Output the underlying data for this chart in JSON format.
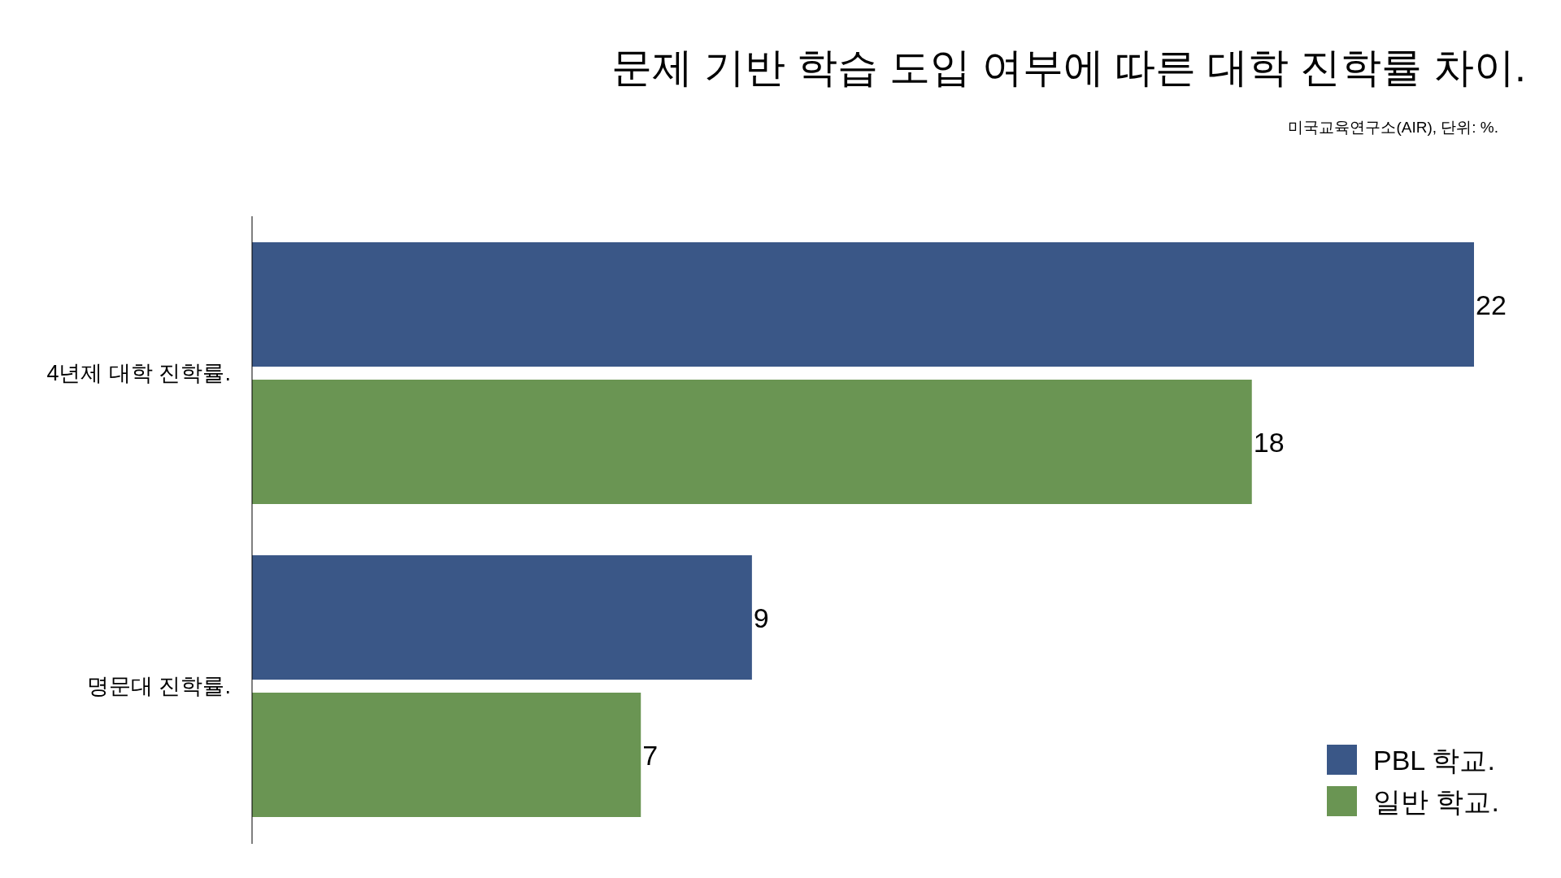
{
  "chart_data": {
    "type": "bar",
    "orientation": "horizontal",
    "title": "문제 기반 학습 도입 여부에 따른 대학 진학률 차이.",
    "annotations": [
      "미국교육연구소(AIR), 단위: %."
    ],
    "categories": [
      "4년제 대학 진학률.",
      "명문대 진학률."
    ],
    "series": [
      {
        "name": "PBL 학교.",
        "color": "#3a5787",
        "values": [
          22,
          9
        ]
      },
      {
        "name": "일반 학교.",
        "color": "#6a9553",
        "values": [
          18,
          7
        ]
      }
    ],
    "data_labels": true,
    "legend": "bottom right"
  }
}
